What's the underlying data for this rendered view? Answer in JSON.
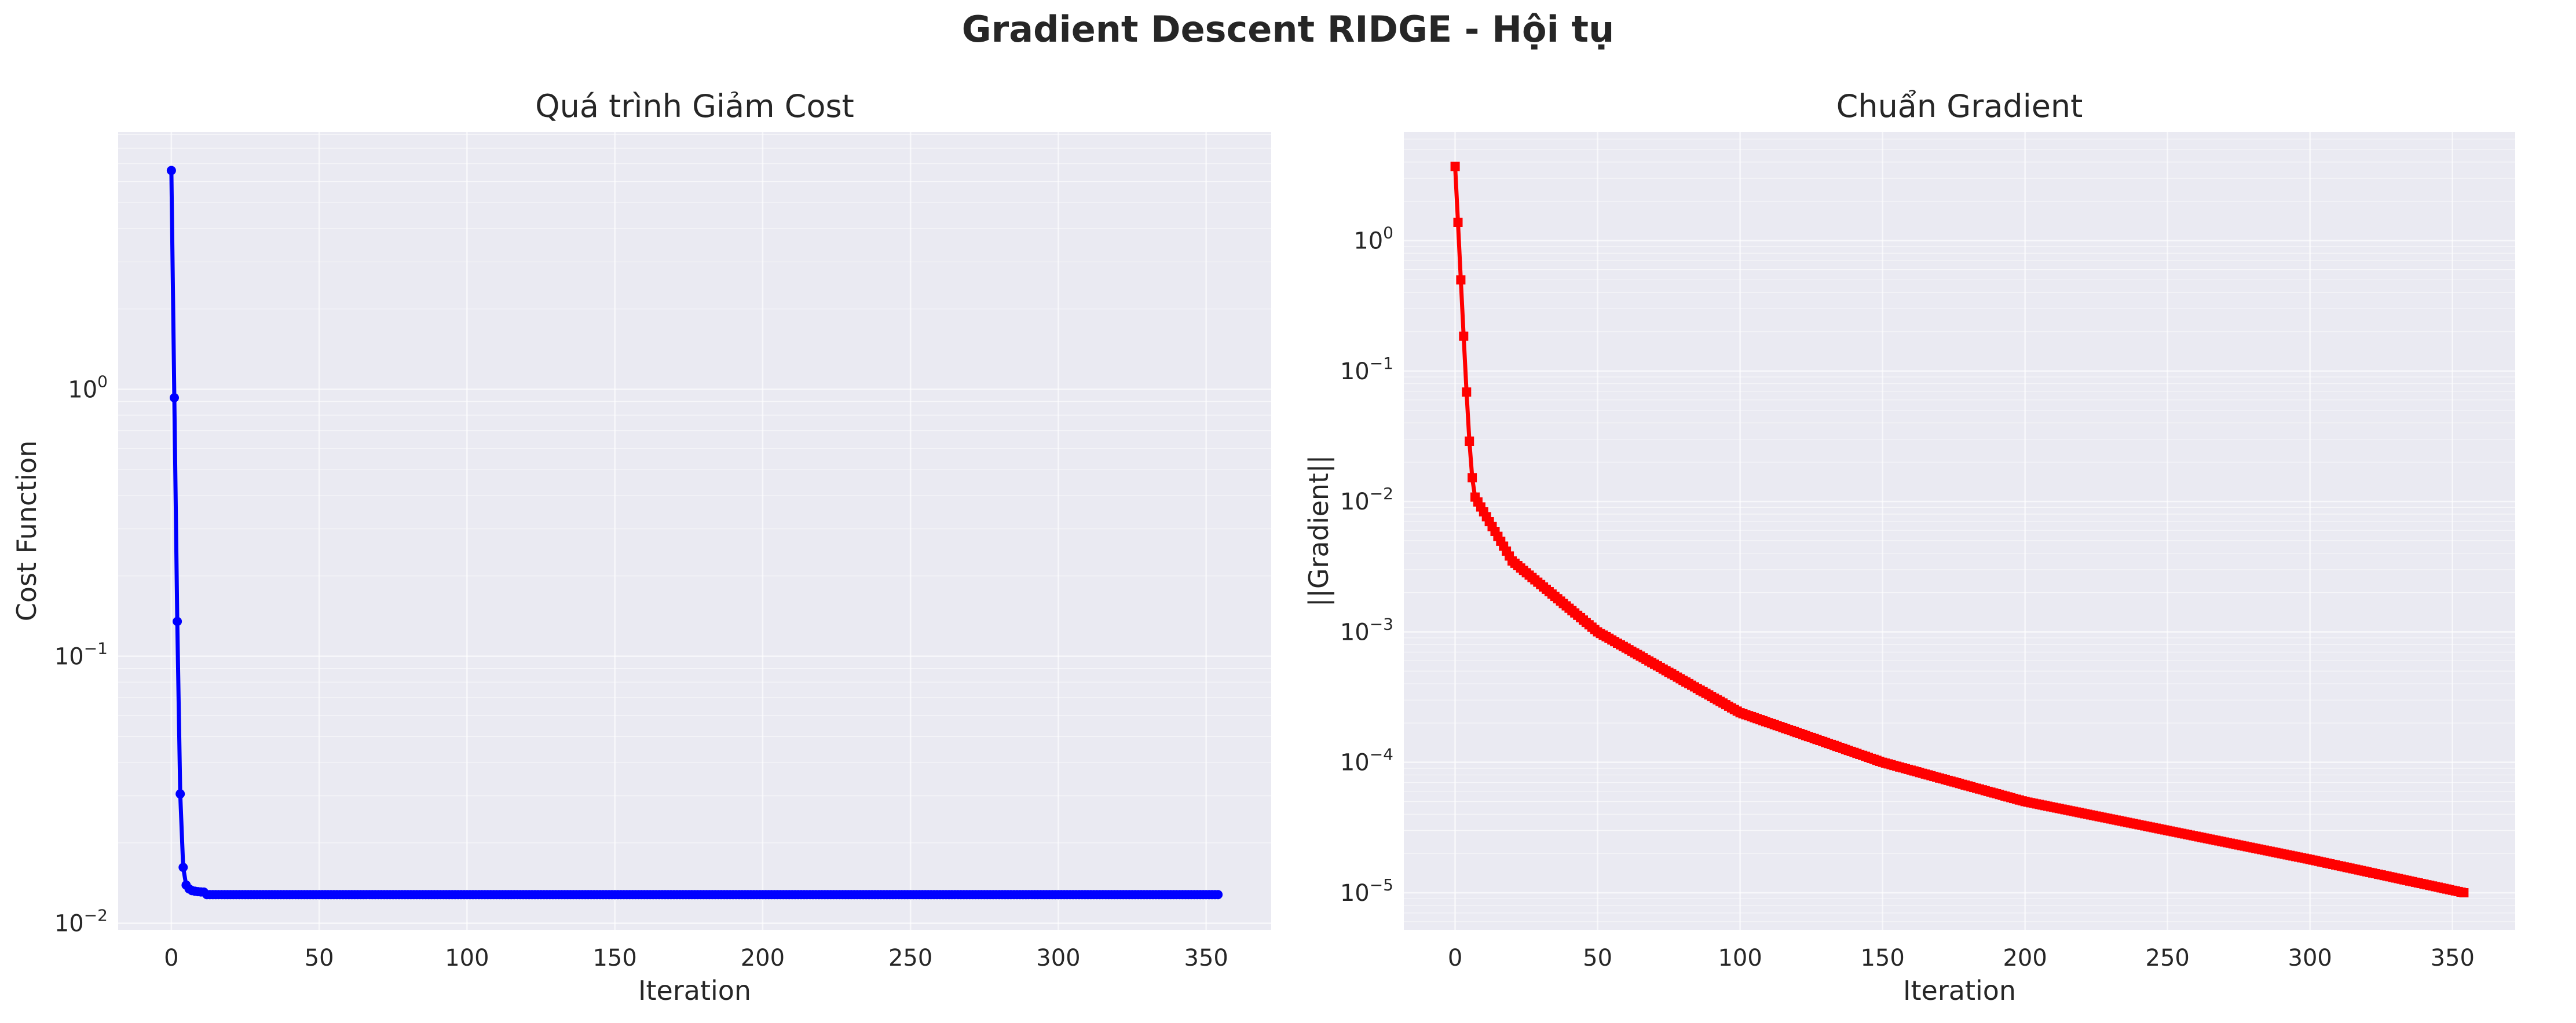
{
  "suptitle": "Gradient Descent RIDGE - Hội tụ",
  "chart_data": [
    {
      "type": "line",
      "title": "Quá trình Giảm Cost",
      "xlabel": "Iteration",
      "ylabel": "Cost Function",
      "yscale": "log",
      "xlim": [
        -18,
        372
      ],
      "ylim": [
        0.00945,
        9.2
      ],
      "xticks": [
        0,
        50,
        100,
        150,
        200,
        250,
        300,
        350
      ],
      "yticks": [
        {
          "value": 0.01,
          "label": "10",
          "exp": "−2"
        },
        {
          "value": 0.1,
          "label": "10",
          "exp": "−1"
        },
        {
          "value": 1,
          "label": "10",
          "exp": "0"
        }
      ],
      "grid": true,
      "marker": "circle",
      "color": "#0000ff",
      "n_iterations": 355,
      "y_initial": [
        6.6,
        0.93,
        0.135,
        0.0305,
        0.0162,
        0.0139,
        0.01345,
        0.01325,
        0.01318,
        0.01313,
        0.0131,
        0.01308
      ],
      "y_plateau": 0.0128
    },
    {
      "type": "line",
      "title": "Chuẩn Gradient",
      "xlabel": "Iteration",
      "ylabel": "||Gradient||",
      "yscale": "log",
      "xlim": [
        -18,
        372
      ],
      "ylim": [
        5.2e-06,
        6.8
      ],
      "xticks": [
        0,
        50,
        100,
        150,
        200,
        250,
        300,
        350
      ],
      "yticks": [
        {
          "value": 1e-05,
          "label": "10",
          "exp": "−5"
        },
        {
          "value": 0.0001,
          "label": "10",
          "exp": "−4"
        },
        {
          "value": 0.001,
          "label": "10",
          "exp": "−3"
        },
        {
          "value": 0.01,
          "label": "10",
          "exp": "−2"
        },
        {
          "value": 0.1,
          "label": "10",
          "exp": "−1"
        },
        {
          "value": 1,
          "label": "10",
          "exp": "0"
        }
      ],
      "grid": true,
      "marker": "square",
      "color": "#ff0000",
      "n_iterations": 355,
      "y_initial": [
        3.7,
        1.38,
        0.5,
        0.185,
        0.069,
        0.029,
        0.0152,
        0.0108
      ],
      "y_anchors": [
        [
          7,
          0.0108
        ],
        [
          20,
          0.0035
        ],
        [
          50,
          0.001
        ],
        [
          100,
          0.00024
        ],
        [
          150,
          0.0001
        ],
        [
          200,
          5e-05
        ],
        [
          250,
          3e-05
        ],
        [
          300,
          1.8e-05
        ],
        [
          354,
          1e-05
        ]
      ]
    }
  ]
}
